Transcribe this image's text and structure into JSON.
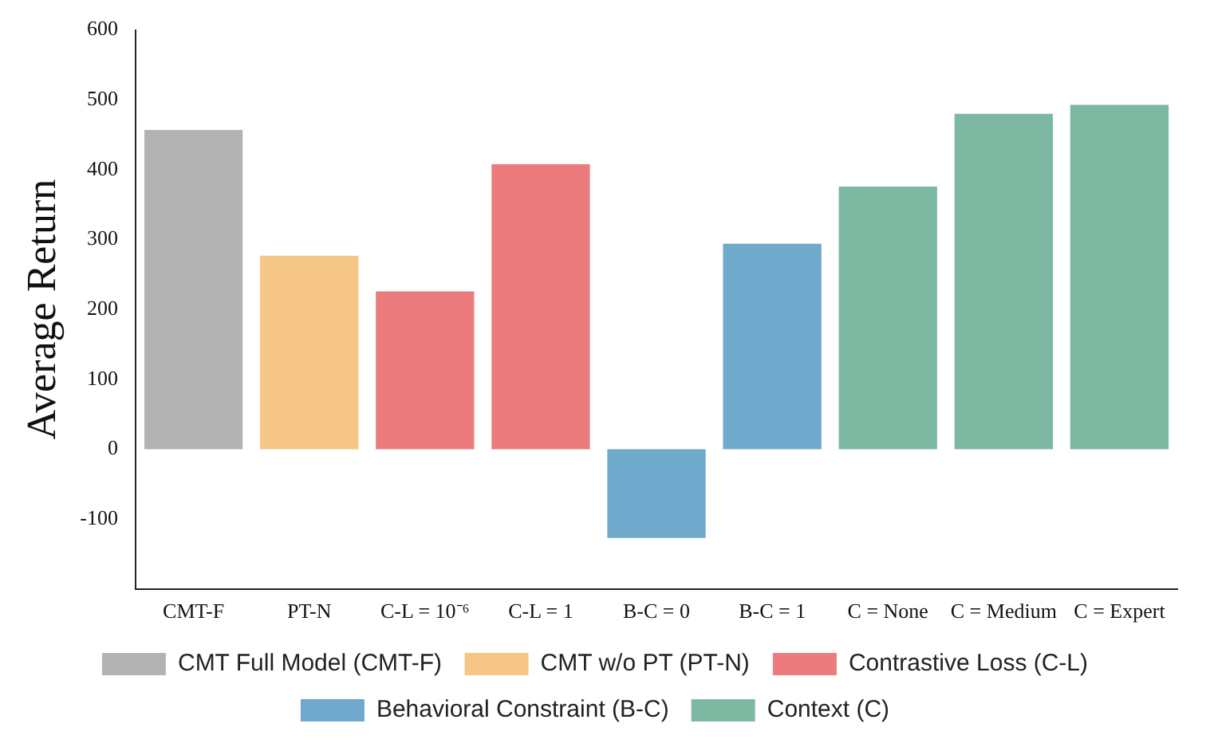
{
  "chart_data": {
    "type": "bar",
    "ylabel": "Average Return",
    "categories": [
      "CMT-F",
      "PT-N",
      "C-L = 10⁻⁶",
      "C-L = 1",
      "B-C = 0",
      "B-C = 1",
      "C = None",
      "C = Medium",
      "C = Expert"
    ],
    "series": [
      {
        "name": "CMT Full Model (CMT-F)",
        "color": "#b3b3b3",
        "values": [
          457,
          null,
          null,
          null,
          null,
          null,
          null,
          null,
          null
        ]
      },
      {
        "name": "CMT w/o PT (PT-N)",
        "color": "#f5c685",
        "values": [
          null,
          277,
          null,
          null,
          null,
          null,
          null,
          null,
          null
        ]
      },
      {
        "name": "Contrastive Loss (C-L)",
        "color": "#ec7b7e",
        "values": [
          null,
          null,
          226,
          408,
          null,
          null,
          null,
          null,
          null
        ]
      },
      {
        "name": "Behavioral Constraint (B-C)",
        "color": "#6fa9cc",
        "values": [
          null,
          null,
          null,
          null,
          -127,
          294,
          null,
          null,
          null
        ]
      },
      {
        "name": "Context (C)",
        "color": "#7db8a3",
        "values": [
          null,
          null,
          null,
          null,
          null,
          null,
          376,
          480,
          493
        ]
      }
    ],
    "ylim": [
      -200,
      600
    ],
    "yticks": [
      {
        "value": -200,
        "label": null
      },
      -100,
      0,
      100,
      200,
      300,
      400,
      500,
      600
    ],
    "grid": false,
    "legend": "bottom"
  }
}
